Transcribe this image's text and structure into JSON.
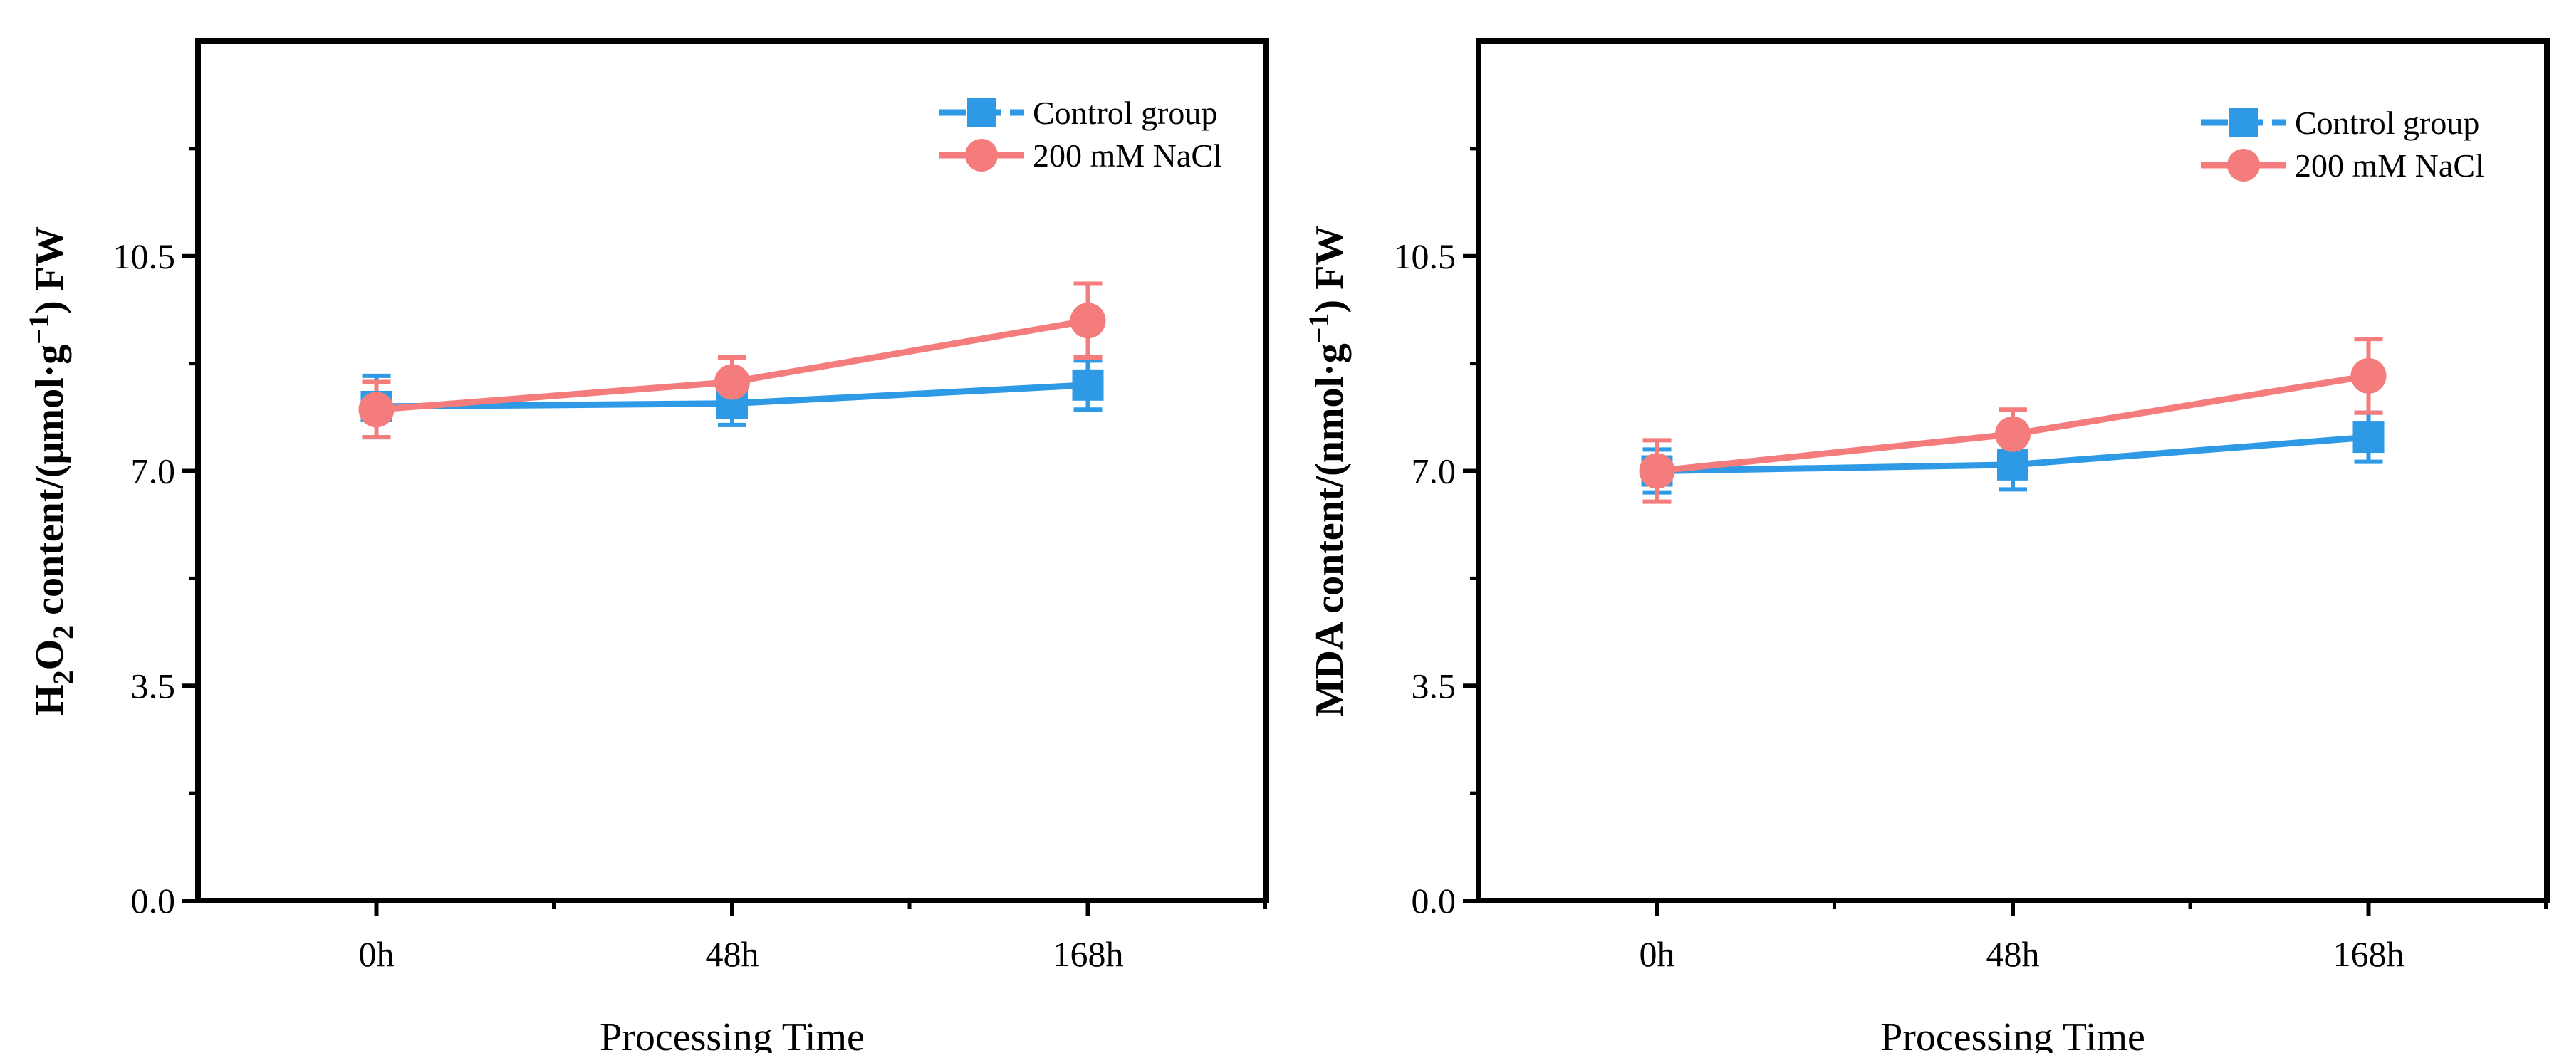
{
  "chart_data": [
    {
      "type": "line",
      "title": "",
      "xlabel": "Processing Time",
      "ylabel": {
        "prefix_1": "H",
        "sub_1": "2",
        "prefix_2": "O",
        "sub_2": "2",
        "main": " content/(μmol·g",
        "sup": "−1",
        "suffix": ") FW"
      },
      "categories": [
        "0h",
        "48h",
        "168h"
      ],
      "yticks": [
        "0.0",
        "3.5",
        "7.0",
        "10.5"
      ],
      "ylim": [
        0,
        14
      ],
      "legend_position": "top-right",
      "series": [
        {
          "name": "Control group",
          "color": "#2E9AE6",
          "marker": "square",
          "values": [
            8.05,
            8.1,
            8.4
          ],
          "errors": [
            0.5,
            0.35,
            0.4
          ]
        },
        {
          "name": "200 mM NaCl",
          "color": "#F47C7C",
          "marker": "circle",
          "values": [
            8.0,
            8.45,
            9.45
          ],
          "errors": [
            0.45,
            0.4,
            0.6
          ]
        }
      ]
    },
    {
      "type": "line",
      "title": "",
      "xlabel": "Processing Time",
      "ylabel": {
        "prefix_1": "MDA content/(nmol·g",
        "sub_1": "",
        "prefix_2": "",
        "sub_2": "",
        "main": "",
        "sup": "−1",
        "suffix": ") FW"
      },
      "categories": [
        "0h",
        "48h",
        "168h"
      ],
      "yticks": [
        "0.0",
        "3.5",
        "7.0",
        "10.5"
      ],
      "ylim": [
        0,
        14
      ],
      "legend_position": "top-right",
      "series": [
        {
          "name": "Control group",
          "color": "#2E9AE6",
          "marker": "square",
          "values": [
            7.0,
            7.1,
            7.55
          ],
          "errors": [
            0.35,
            0.4,
            0.4
          ]
        },
        {
          "name": "200 mM NaCl",
          "color": "#F47C7C",
          "marker": "circle",
          "values": [
            7.0,
            7.6,
            8.55
          ],
          "errors": [
            0.5,
            0.4,
            0.6
          ]
        }
      ]
    }
  ]
}
